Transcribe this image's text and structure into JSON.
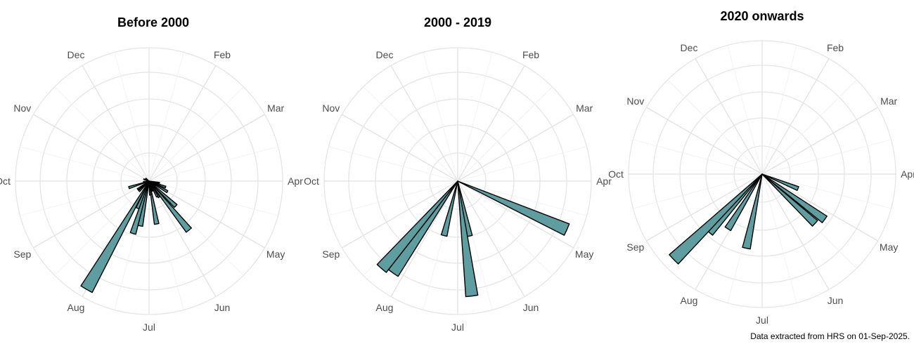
{
  "chart_data": [
    {
      "type": "polar-bar",
      "title": "Before 2000",
      "months": [
        "Jan",
        "Feb",
        "Mar",
        "Apr",
        "May",
        "Jun",
        "Jul",
        "Aug",
        "Sep",
        "Oct",
        "Nov",
        "Dec"
      ],
      "bars": [
        {
          "deg": 133,
          "r": 52
        },
        {
          "deg": 141,
          "r": 90
        },
        {
          "deg": 148,
          "r": 27
        },
        {
          "deg": 152,
          "r": 25
        },
        {
          "deg": 160,
          "r": 15
        },
        {
          "deg": 170,
          "r": 62
        },
        {
          "deg": 175,
          "r": 20
        },
        {
          "deg": 191,
          "r": 65
        },
        {
          "deg": 197,
          "r": 78
        },
        {
          "deg": 203,
          "r": 42
        },
        {
          "deg": 210,
          "r": 178
        },
        {
          "deg": 225,
          "r": 20
        },
        {
          "deg": 234,
          "r": 20
        },
        {
          "deg": 252,
          "r": 30
        },
        {
          "deg": 262,
          "r": 8
        },
        {
          "deg": 290,
          "r": 8
        },
        {
          "deg": 310,
          "r": 6
        },
        {
          "deg": 100,
          "r": 15
        },
        {
          "deg": 110,
          "r": 25
        },
        {
          "deg": 120,
          "r": 30
        }
      ]
    },
    {
      "type": "polar-bar",
      "title": "2000 - 2019",
      "months": [
        "Jan",
        "Feb",
        "Mar",
        "Apr",
        "May",
        "Jun",
        "Jul",
        "Aug",
        "Sep",
        "Oct",
        "Nov",
        "Dec"
      ],
      "bars": [
        {
          "deg": 114,
          "r": 170
        },
        {
          "deg": 168,
          "r": 80
        },
        {
          "deg": 173,
          "r": 165
        },
        {
          "deg": 194,
          "r": 80
        },
        {
          "deg": 215,
          "r": 160
        },
        {
          "deg": 221,
          "r": 165
        }
      ]
    },
    {
      "type": "polar-bar",
      "title": "2020 onwards",
      "months": [
        "Jan",
        "Feb",
        "Mar",
        "Apr",
        "May",
        "Jun",
        "Jul",
        "Aug",
        "Sep",
        "Oct",
        "Nov",
        "Dec"
      ],
      "bars": [
        {
          "deg": 112,
          "r": 55
        },
        {
          "deg": 126,
          "r": 110
        },
        {
          "deg": 133,
          "r": 103
        },
        {
          "deg": 192,
          "r": 108
        },
        {
          "deg": 212,
          "r": 92
        },
        {
          "deg": 222,
          "r": 112
        },
        {
          "deg": 226,
          "r": 175
        }
      ]
    }
  ],
  "footnote": "Data extracted from HRS on 01-Sep-2025.",
  "colors": {
    "bar_fill": "#5f9ea0",
    "bar_stroke": "#000000",
    "grid": "#e5e5e5",
    "label": "#4d4d4d"
  }
}
